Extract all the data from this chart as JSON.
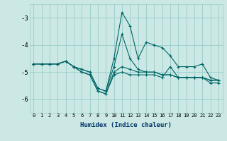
{
  "title": "",
  "xlabel": "Humidex (Indice chaleur)",
  "background_color": "#cce8e4",
  "grid_color": "#99cccc",
  "line_color": "#006666",
  "ylim": [
    -6.5,
    -2.5
  ],
  "xlim": [
    -0.5,
    23.5
  ],
  "yticks": [
    -6,
    -5,
    -4,
    -3
  ],
  "xticks": [
    0,
    1,
    2,
    3,
    4,
    5,
    6,
    7,
    8,
    9,
    10,
    11,
    12,
    13,
    14,
    15,
    16,
    17,
    18,
    19,
    20,
    21,
    22,
    23
  ],
  "lines": [
    {
      "x": [
        0,
        1,
        2,
        3,
        4,
        5,
        6,
        7,
        8,
        9,
        10,
        11,
        12,
        13,
        14,
        15,
        16,
        17,
        18,
        19,
        20,
        21,
        22,
        23
      ],
      "y": [
        -4.7,
        -4.7,
        -4.7,
        -4.7,
        -4.6,
        -4.8,
        -4.9,
        -5.0,
        -5.6,
        -5.7,
        -4.5,
        -2.8,
        -3.3,
        -4.5,
        -3.9,
        -4.0,
        -4.1,
        -4.4,
        -4.8,
        -4.8,
        -4.8,
        -4.7,
        -5.2,
        -5.3
      ]
    },
    {
      "x": [
        0,
        1,
        2,
        3,
        4,
        5,
        6,
        7,
        8,
        9,
        10,
        11,
        12,
        13,
        14,
        15,
        16,
        17,
        18,
        19,
        20,
        21,
        22,
        23
      ],
      "y": [
        -4.7,
        -4.7,
        -4.7,
        -4.7,
        -4.6,
        -4.8,
        -4.9,
        -5.0,
        -5.6,
        -5.7,
        -4.8,
        -3.6,
        -4.5,
        -4.9,
        -5.0,
        -5.0,
        -5.1,
        -5.1,
        -5.2,
        -5.2,
        -5.2,
        -5.2,
        -5.3,
        -5.3
      ]
    },
    {
      "x": [
        0,
        1,
        2,
        3,
        4,
        5,
        6,
        7,
        8,
        9,
        10,
        11,
        12,
        13,
        14,
        15,
        16,
        17,
        18,
        19,
        20,
        21,
        22,
        23
      ],
      "y": [
        -4.7,
        -4.7,
        -4.7,
        -4.7,
        -4.6,
        -4.8,
        -5.0,
        -5.1,
        -5.7,
        -5.8,
        -5.0,
        -4.8,
        -4.9,
        -5.0,
        -5.0,
        -5.0,
        -5.1,
        -5.1,
        -5.2,
        -5.2,
        -5.2,
        -5.2,
        -5.3,
        -5.3
      ]
    },
    {
      "x": [
        0,
        1,
        2,
        3,
        4,
        5,
        6,
        7,
        8,
        9,
        10,
        11,
        12,
        13,
        14,
        15,
        16,
        17,
        18,
        19,
        20,
        21,
        22,
        23
      ],
      "y": [
        -4.7,
        -4.7,
        -4.7,
        -4.7,
        -4.6,
        -4.8,
        -5.0,
        -5.1,
        -5.7,
        -5.8,
        -5.1,
        -5.0,
        -5.1,
        -5.1,
        -5.1,
        -5.1,
        -5.2,
        -4.8,
        -5.2,
        -5.2,
        -5.2,
        -5.2,
        -5.4,
        -5.4
      ]
    }
  ]
}
